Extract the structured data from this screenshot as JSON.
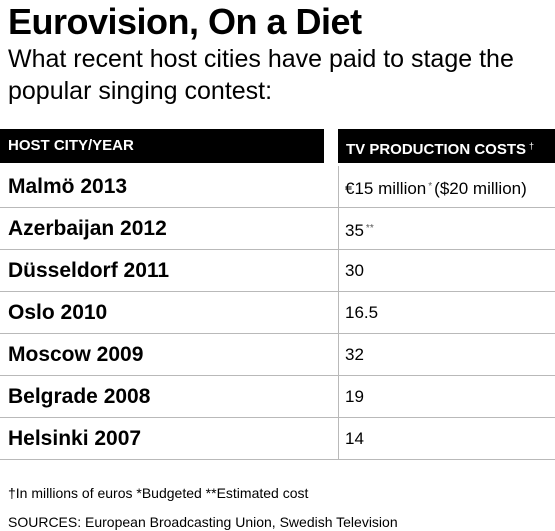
{
  "title": "Eurovision, On a Diet",
  "subtitle": "What recent host cities have paid to stage the popular singing contest:",
  "headers": {
    "city": "HOST CITY/YEAR",
    "cost": "TV PRODUCTION COSTS",
    "cost_mark": "†"
  },
  "chart_data": {
    "type": "table",
    "title": "Eurovision, On a Diet",
    "subtitle": "What recent host cities have paid to stage the popular singing contest:",
    "columns": [
      "HOST CITY/YEAR",
      "TV PRODUCTION COSTS"
    ],
    "rows": [
      {
        "city": "Malmö 2013",
        "value": "€15 million",
        "mark": "*",
        "suffix": "($20 million)"
      },
      {
        "city": "Azerbaijan 2012",
        "value": "35",
        "mark": "**",
        "suffix": ""
      },
      {
        "city": "Düsseldorf 2011",
        "value": "30",
        "mark": "",
        "suffix": ""
      },
      {
        "city": "Oslo 2010",
        "value": "16.5",
        "mark": "",
        "suffix": ""
      },
      {
        "city": "Moscow 2009",
        "value": "32",
        "mark": "",
        "suffix": ""
      },
      {
        "city": "Belgrade 2008",
        "value": "19",
        "mark": "",
        "suffix": ""
      },
      {
        "city": "Helsinki 2007",
        "value": "14",
        "mark": "",
        "suffix": ""
      }
    ]
  },
  "footnote": "†In millions of euros *Budgeted **Estimated cost",
  "sources": "SOURCES: European Broadcasting Union, Swedish Television"
}
